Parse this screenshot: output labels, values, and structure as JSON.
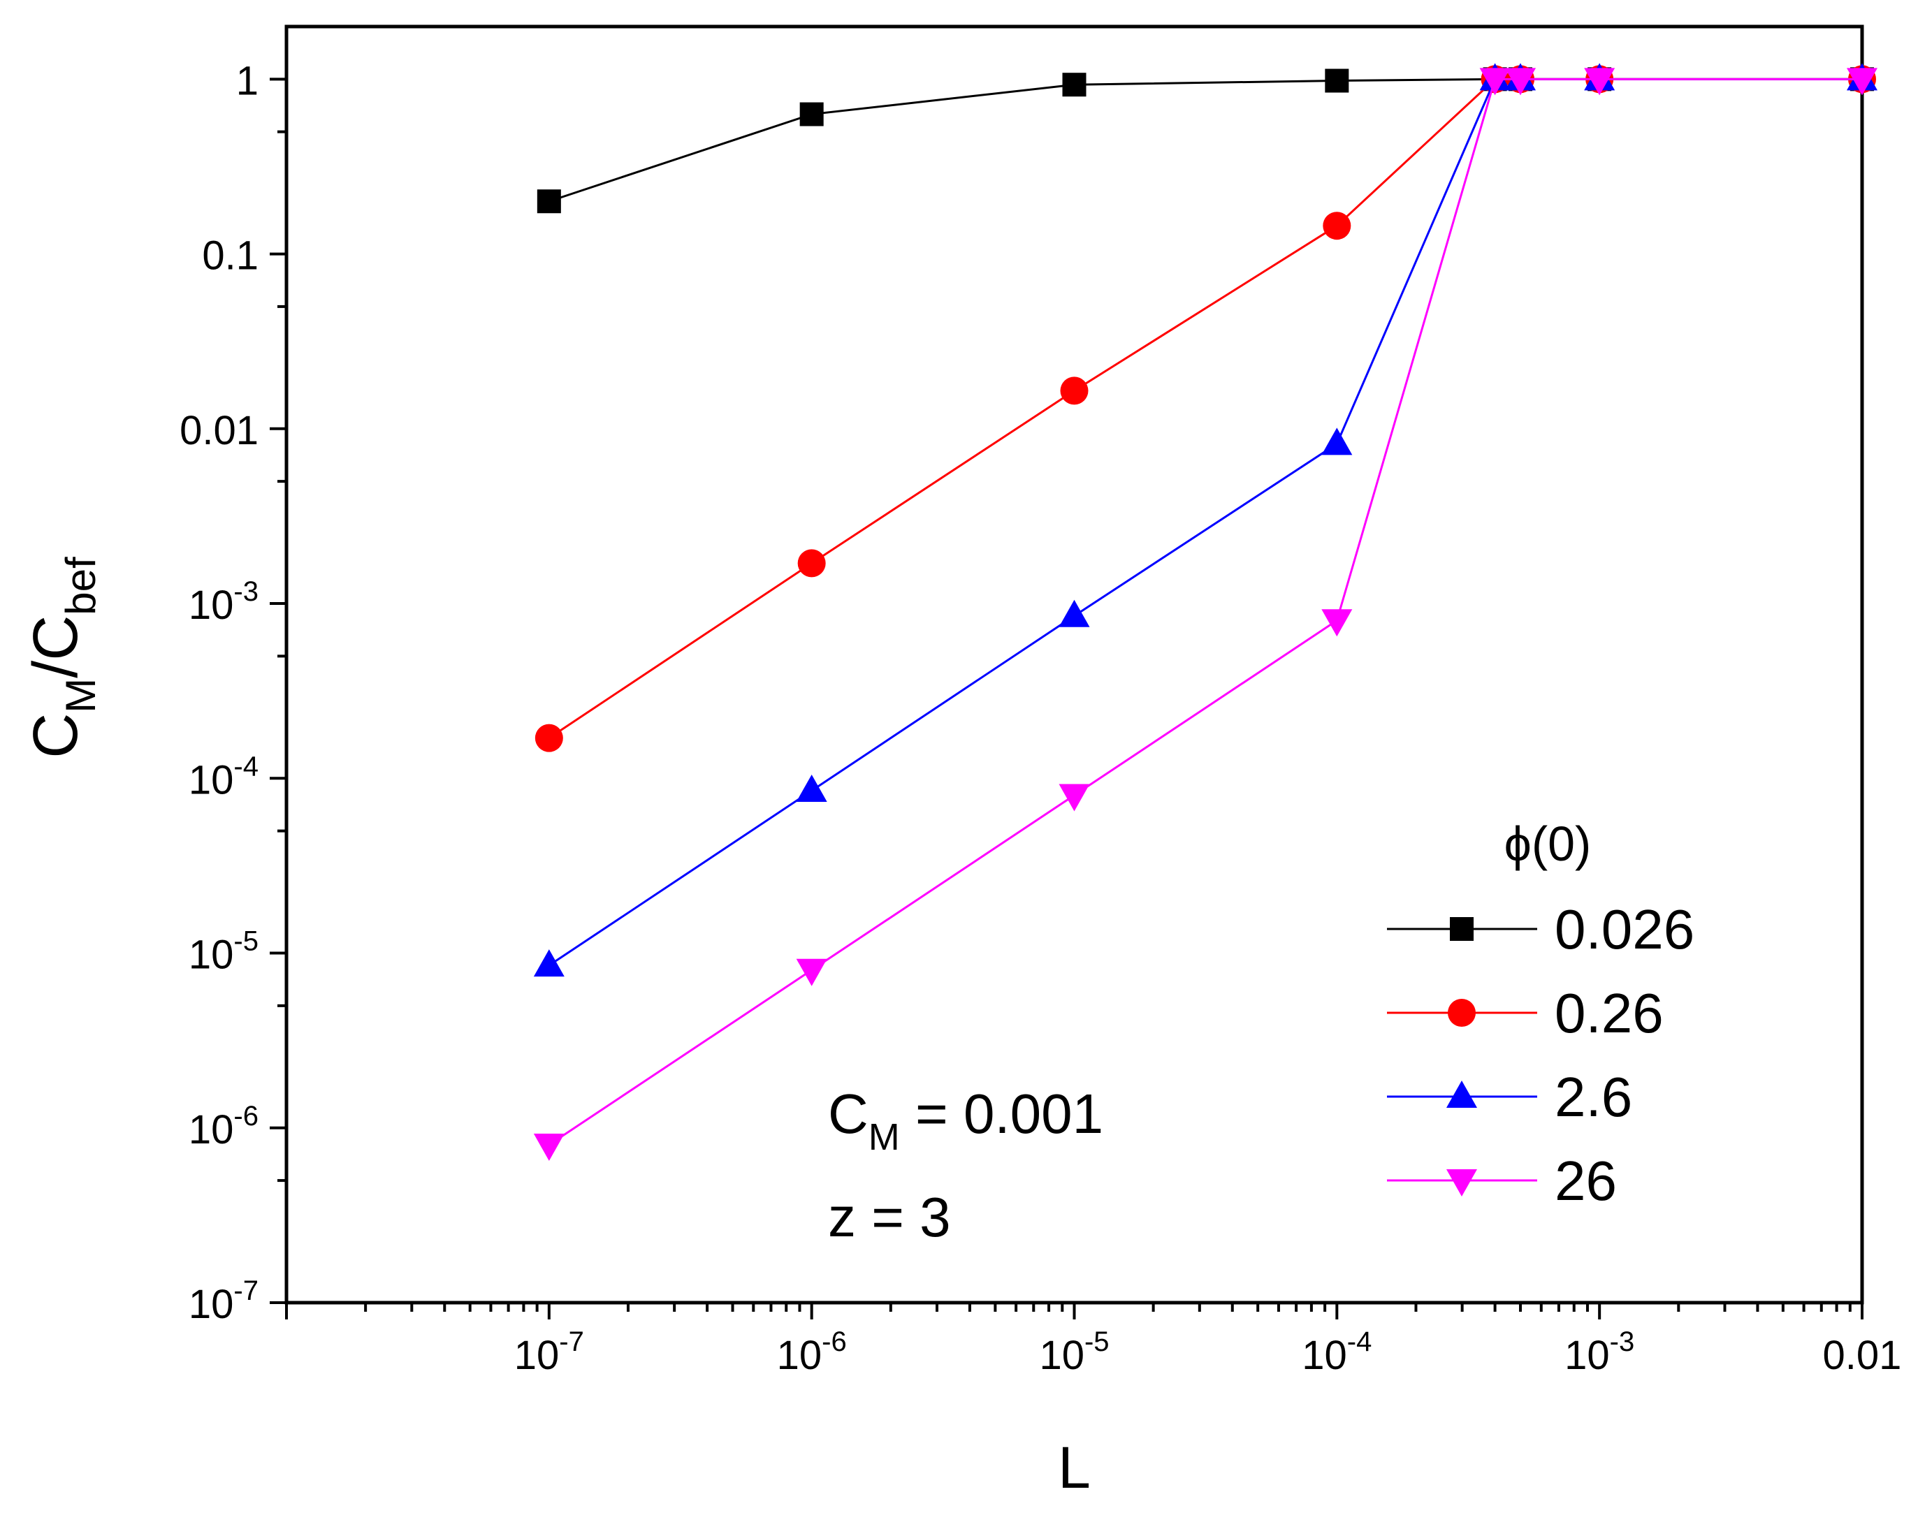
{
  "chart_data": {
    "type": "line",
    "x_scale": "log",
    "y_scale": "log",
    "xlabel": "L",
    "ylabel": {
      "base1": "C",
      "sub1": "M",
      "slash": "/",
      "base2": "C",
      "sub2": "bef"
    },
    "xlim": [
      1e-08,
      0.01
    ],
    "ylim": [
      1e-07,
      2
    ],
    "x_ticks": [
      {
        "value": 1e-07,
        "base": "10",
        "exp": "-7"
      },
      {
        "value": 1e-06,
        "base": "10",
        "exp": "-6"
      },
      {
        "value": 1e-05,
        "base": "10",
        "exp": "-5"
      },
      {
        "value": 0.0001,
        "base": "10",
        "exp": "-4"
      },
      {
        "value": 0.001,
        "base": "10",
        "exp": "-3"
      },
      {
        "value": 0.01,
        "base": "0.01",
        "exp": ""
      }
    ],
    "y_ticks": [
      {
        "value": 1,
        "base": "1",
        "exp": ""
      },
      {
        "value": 0.1,
        "base": "0.1",
        "exp": ""
      },
      {
        "value": 0.01,
        "base": "0.01",
        "exp": ""
      },
      {
        "value": 0.001,
        "base": "10",
        "exp": "-3"
      },
      {
        "value": 0.0001,
        "base": "10",
        "exp": "-4"
      },
      {
        "value": 1e-05,
        "base": "10",
        "exp": "-5"
      },
      {
        "value": 1e-06,
        "base": "10",
        "exp": "-6"
      },
      {
        "value": 1e-07,
        "base": "10",
        "exp": "-7"
      }
    ],
    "legend": {
      "title": "ϕ(0)",
      "placement": "right-middle"
    },
    "annotations": [
      {
        "base": "C",
        "sub": "M",
        "rest": " = 0.001"
      },
      {
        "base": "z = 3",
        "sub": "",
        "rest": ""
      }
    ],
    "series": [
      {
        "name": "0.026",
        "color": "#000000",
        "marker": "square",
        "x": [
          1e-07,
          1e-06,
          1e-05,
          0.0001,
          0.0004,
          0.0005,
          0.001,
          0.01
        ],
        "y": [
          0.2,
          0.63,
          0.93,
          0.98,
          1,
          1,
          1,
          1
        ]
      },
      {
        "name": "0.26",
        "color": "#ff0000",
        "marker": "circle",
        "x": [
          1e-07,
          1e-06,
          1e-05,
          0.0001,
          0.0004,
          0.0005,
          0.001,
          0.01
        ],
        "y": [
          0.00017,
          0.0017,
          0.0165,
          0.145,
          1,
          1,
          1,
          1
        ]
      },
      {
        "name": "2.6",
        "color": "#0000ff",
        "marker": "triangle-up",
        "x": [
          1e-07,
          1e-06,
          1e-05,
          0.0001,
          0.0004,
          0.0005,
          0.001,
          0.01
        ],
        "y": [
          8.5e-06,
          8.5e-05,
          0.00085,
          0.0082,
          1,
          1,
          1,
          1
        ]
      },
      {
        "name": "26",
        "color": "#ff00ff",
        "marker": "triangle-down",
        "x": [
          1e-07,
          1e-06,
          1e-05,
          0.0001,
          0.0004,
          0.0005,
          0.001,
          0.01
        ],
        "y": [
          8e-07,
          8e-06,
          8e-05,
          0.0008,
          1,
          1,
          1,
          1
        ]
      }
    ]
  }
}
